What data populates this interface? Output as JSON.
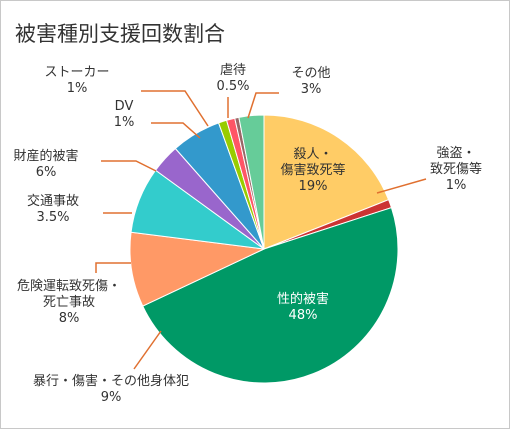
{
  "chart_data": {
    "type": "pie",
    "title": "被害種別支援回数割合",
    "slices": [
      {
        "lines": [
          "殺人・",
          "傷害致死等"
        ],
        "value": 19,
        "value_label": "19%",
        "color": "#ffcc66"
      },
      {
        "lines": [
          "強盗・",
          "致死傷等"
        ],
        "value": 1,
        "value_label": "1%",
        "color": "#cc3333"
      },
      {
        "lines": [
          "性的被害"
        ],
        "value": 48,
        "value_label": "48%",
        "color": "#009966"
      },
      {
        "lines": [
          "暴行・傷害・その他身体犯"
        ],
        "value": 9,
        "value_label": "9%",
        "color": "#ff9966"
      },
      {
        "lines": [
          "危険運転致死傷・",
          "死亡事故"
        ],
        "value": 8,
        "value_label": "8%",
        "color": "#33cccc"
      },
      {
        "lines": [
          "交通事故"
        ],
        "value": 3.5,
        "value_label": "3.5%",
        "color": "#9966cc"
      },
      {
        "lines": [
          "財産的被害"
        ],
        "value": 6,
        "value_label": "6%",
        "color": "#3399cc"
      },
      {
        "lines": [
          "DV"
        ],
        "value": 1,
        "value_label": "1%",
        "color": "#99cc00"
      },
      {
        "lines": [
          "ストーカー"
        ],
        "value": 1,
        "value_label": "1%",
        "color": "#ff5566"
      },
      {
        "lines": [
          "虐待"
        ],
        "value": 0.5,
        "value_label": "0.5%",
        "color": "#996666"
      },
      {
        "lines": [
          "その他"
        ],
        "value": 3,
        "value_label": "3%",
        "color": "#66cc99"
      }
    ]
  }
}
